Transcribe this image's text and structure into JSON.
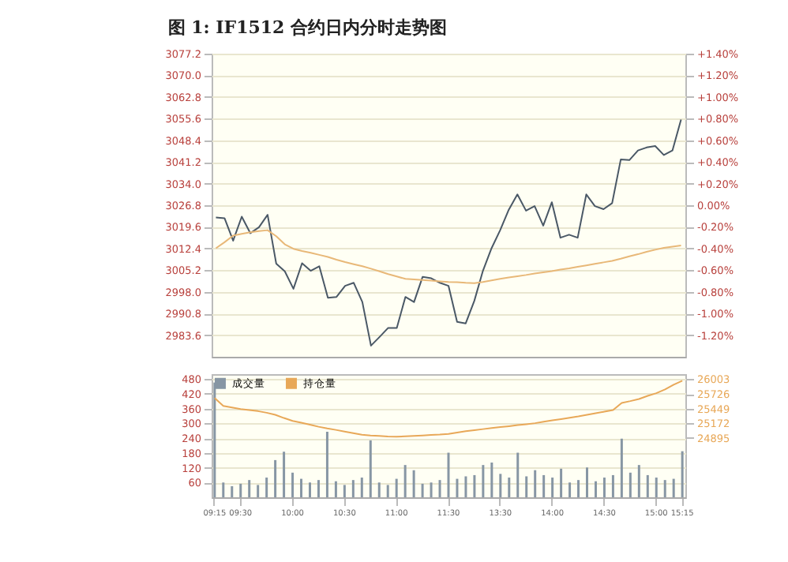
{
  "chart_data": [
    {
      "type": "line",
      "title": "图 1: IF1512 合约日内分时走势图",
      "tick_labels": "y",
      "grid": true,
      "categories": [
        null,
        null,
        null,
        null,
        null,
        null,
        null,
        null,
        null,
        null,
        null,
        null,
        null,
        null,
        null,
        null,
        null,
        null,
        null,
        null,
        null,
        null,
        null,
        null,
        null,
        null,
        null,
        null,
        null,
        null,
        null,
        null,
        null,
        null,
        null,
        null,
        null,
        null,
        null,
        null,
        null,
        null,
        null,
        null,
        null,
        null,
        null,
        null,
        null,
        null,
        null,
        null,
        null,
        null,
        null
      ],
      "ylim": [
        2976.4,
        3077.2
      ],
      "yticks": [
        2983.6,
        2990.8,
        {
          "value": 2998,
          "label": "2998.0"
        },
        3005.2,
        3012.4,
        3019.6,
        3026.8,
        {
          "value": 3034,
          "label": "3034.0"
        },
        3041.2,
        3048.4,
        3055.6,
        3062.8,
        {
          "value": 3070,
          "label": "3070.0"
        },
        3077.2
      ],
      "y2lim": [
        -1.4,
        1.4
      ],
      "y2ticks": [
        {
          "value": -1.2,
          "label": "-1.20%"
        },
        {
          "value": -1.0,
          "label": "-1.00%"
        },
        {
          "value": -0.8,
          "label": "-0.80%"
        },
        {
          "value": -0.6,
          "label": "-0.60%"
        },
        {
          "value": -0.4,
          "label": "-0.40%"
        },
        {
          "value": -0.2,
          "label": "-0.20%"
        },
        {
          "value": 0,
          "label": "0.00%"
        },
        {
          "value": 0.2,
          "label": "+0.20%"
        },
        {
          "value": 0.4,
          "label": "+0.40%"
        },
        {
          "value": 0.6,
          "label": "+0.60%"
        },
        {
          "value": 0.8,
          "label": "+0.80%"
        },
        {
          "value": 1.0,
          "label": "+1.00%"
        },
        {
          "value": 1.2,
          "label": "+1.20%"
        },
        {
          "value": 1.4,
          "label": "+1.40%"
        }
      ],
      "series": [
        {
          "color": "#4a5866",
          "values": [
            3022.7,
            3022.5,
            3015.0,
            3023.0,
            3017.5,
            3019.5,
            3023.6,
            3007.4,
            3004.8,
            2999.0,
            3007.5,
            3005.0,
            3006.5,
            2996.0,
            2996.3,
            3000.0,
            3001.0,
            2994.6,
            2980.1,
            2983.0,
            2986.0,
            2986.0,
            2996.3,
            2994.6,
            3003.0,
            3002.5,
            3001.0,
            3000.0,
            2988.0,
            2987.5,
            2995.0,
            3005.0,
            3012.5,
            3018.5,
            3025.3,
            3030.4,
            3025.0,
            3026.5,
            3020.0,
            3027.8,
            3016.0,
            3017.0,
            3016.0,
            3030.4,
            3026.5,
            3025.5,
            3027.5,
            3042.0,
            3041.8,
            3045.0,
            3046.0,
            3046.5,
            3043.5,
            3045.0,
            3055.3
          ]
        },
        {
          "color": "#e8b878",
          "values": [
            3012.5,
            3014.5,
            3016.7,
            3017.3,
            3017.8,
            3018.2,
            3018.5,
            3016.5,
            3013.8,
            3012.3,
            3011.6,
            3011.0,
            3010.3,
            3009.6,
            3008.7,
            3007.9,
            3007.2,
            3006.5,
            3005.7,
            3004.8,
            3003.9,
            3003.1,
            3002.3,
            3002.1,
            3001.9,
            3001.7,
            3001.5,
            3001.3,
            3001.2,
            3001.0,
            3000.9,
            3001.3,
            3001.8,
            3002.3,
            3002.8,
            3003.2,
            3003.6,
            3004.1,
            3004.5,
            3004.9,
            3005.4,
            3005.8,
            3006.3,
            3006.8,
            3007.3,
            3007.8,
            3008.3,
            3009.0,
            3009.8,
            3010.5,
            3011.3,
            3012.0,
            3012.6,
            3013.0,
            3013.4
          ]
        }
      ]
    },
    {
      "type": "bar",
      "grid": true,
      "legend": "top left",
      "categories": [
        "09:15",
        null,
        null,
        "09:30",
        null,
        null,
        null,
        null,
        null,
        "10:00",
        null,
        null,
        null,
        null,
        null,
        "10:30",
        null,
        null,
        null,
        null,
        null,
        "11:00",
        null,
        null,
        null,
        null,
        null,
        "11:30",
        null,
        null,
        null,
        null,
        null,
        "13:30",
        null,
        null,
        null,
        null,
        null,
        "14:00",
        null,
        null,
        null,
        null,
        null,
        "14:30",
        null,
        null,
        null,
        null,
        null,
        "15:00",
        null,
        null,
        "15:15"
      ],
      "ylim": [
        0,
        500
      ],
      "yticks": [
        60,
        120,
        180,
        240,
        300,
        360,
        420,
        480
      ],
      "y2lim": [
        23770,
        26100
      ],
      "y2ticks": [
        24895,
        25172,
        25449,
        25726,
        26003
      ],
      "series": [
        {
          "name": "成交量",
          "color": "#8796a4",
          "values": [
            466,
            60,
            45,
            55,
            70,
            50,
            80,
            151,
            185,
            100,
            75,
            60,
            70,
            266,
            65,
            50,
            70,
            80,
            231,
            60,
            50,
            75,
            131,
            110,
            55,
            60,
            70,
            181,
            75,
            85,
            90,
            131,
            141,
            95,
            80,
            181,
            85,
            110,
            90,
            80,
            116,
            60,
            70,
            121,
            65,
            80,
            90,
            238,
            100,
            131,
            90,
            80,
            70,
            75,
            187
          ]
        },
        {
          "name": "持仓量",
          "type": "line",
          "axis": "y2",
          "color": "#e8a858",
          "values": [
            25647,
            25500,
            25470,
            25440,
            25420,
            25400,
            25370,
            25330,
            25270,
            25215,
            25180,
            25145,
            25105,
            25072,
            25045,
            25015,
            24985,
            24955,
            24940,
            24930,
            24920,
            24915,
            24922,
            24930,
            24940,
            24950,
            24958,
            24970,
            24995,
            25020,
            25040,
            25060,
            25080,
            25098,
            25115,
            25135,
            25152,
            25172,
            25200,
            25225,
            25250,
            25275,
            25300,
            25330,
            25360,
            25390,
            25420,
            25555,
            25590,
            25630,
            25690,
            25740,
            25810,
            25900,
            25976
          ]
        }
      ]
    }
  ]
}
